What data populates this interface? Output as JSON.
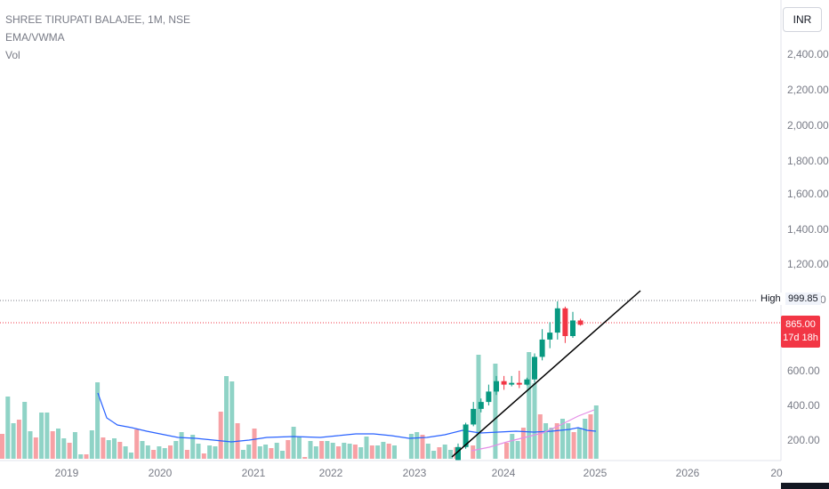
{
  "header": {
    "symbol": "SHREE TIRUPATI BALAJEE, 1M, NSE",
    "indicator_1": "EMA/VWMA",
    "indicator_2": "Vol"
  },
  "currency_button": "INR",
  "price_axis": {
    "ticks": [
      "2,400.00",
      "2,200.00",
      "2,000.00",
      "1,800.00",
      "1,600.00",
      "1,400.00",
      "1,200.00",
      "600.00",
      "400.00",
      "200.00"
    ],
    "partial_tick": "0"
  },
  "high_marker": {
    "label": "High",
    "value": "999.85"
  },
  "last_price": {
    "value": "865.00",
    "countdown": "17d 18h"
  },
  "time_axis": {
    "labels": [
      "2019",
      "2020",
      "2021",
      "2022",
      "2023",
      "2024",
      "2025",
      "2026",
      "20"
    ]
  },
  "colors": {
    "up": "#089981",
    "down": "#f23645",
    "vol_up": "#8fd3c6",
    "vol_down": "#f7a1a5",
    "ema": "#2962ff",
    "vwma": "#e48ee6",
    "trendline": "#000000"
  },
  "chart_data": {
    "type": "candlestick",
    "interval": "1M",
    "exchange": "NSE",
    "y_range": [
      100,
      2500
    ],
    "candles": [
      {
        "t": "2023-08",
        "o": 85,
        "h": 180,
        "l": 80,
        "c": 160
      },
      {
        "t": "2023-09",
        "o": 160,
        "h": 300,
        "l": 150,
        "c": 290
      },
      {
        "t": "2023-10",
        "o": 290,
        "h": 420,
        "l": 280,
        "c": 380
      },
      {
        "t": "2023-11",
        "o": 380,
        "h": 440,
        "l": 360,
        "c": 420
      },
      {
        "t": "2023-12",
        "o": 420,
        "h": 520,
        "l": 400,
        "c": 480
      },
      {
        "t": "2024-01",
        "o": 480,
        "h": 570,
        "l": 460,
        "c": 540
      },
      {
        "t": "2024-02",
        "o": 540,
        "h": 570,
        "l": 490,
        "c": 520
      },
      {
        "t": "2024-03",
        "o": 520,
        "h": 570,
        "l": 510,
        "c": 530
      },
      {
        "t": "2024-04",
        "o": 530,
        "h": 600,
        "l": 500,
        "c": 520
      },
      {
        "t": "2024-05",
        "o": 520,
        "h": 560,
        "l": 515,
        "c": 550
      },
      {
        "t": "2024-06",
        "o": 550,
        "h": 700,
        "l": 530,
        "c": 680
      },
      {
        "t": "2024-07",
        "o": 680,
        "h": 840,
        "l": 660,
        "c": 780
      },
      {
        "t": "2024-08",
        "o": 780,
        "h": 880,
        "l": 730,
        "c": 820
      },
      {
        "t": "2024-09",
        "o": 820,
        "h": 1000,
        "l": 780,
        "c": 960
      },
      {
        "t": "2024-10",
        "o": 960,
        "h": 970,
        "l": 760,
        "c": 800
      },
      {
        "t": "2024-11",
        "o": 800,
        "h": 940,
        "l": 790,
        "c": 890
      },
      {
        "t": "2024-12",
        "o": 890,
        "h": 900,
        "l": 860,
        "c": 865
      }
    ],
    "high": 999.85,
    "last": 865.0
  }
}
